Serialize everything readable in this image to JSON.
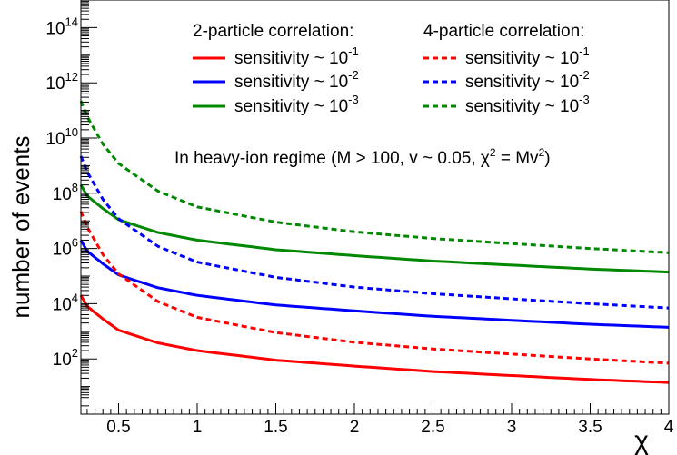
{
  "chart_data": {
    "type": "line",
    "title": "",
    "xlabel": "χ",
    "ylabel": "number of events",
    "x_scale": "linear",
    "y_scale": "log",
    "xlim": [
      0.26,
      4.0
    ],
    "ylim": [
      1,
      1000000000000000.0
    ],
    "x_ticks": [
      0.5,
      1,
      1.5,
      2,
      2.5,
      3,
      3.5,
      4
    ],
    "x_tick_labels": [
      "0.5",
      "1",
      "1.5",
      "2",
      "2.5",
      "3",
      "3.5",
      "4"
    ],
    "y_ticks": [
      100,
      10000,
      1000000,
      100000000,
      10000000000,
      1000000000000,
      100000000000000
    ],
    "y_tick_labels": [
      {
        "base": "10",
        "exp": "2"
      },
      {
        "base": "10",
        "exp": "4"
      },
      {
        "base": "10",
        "exp": "6"
      },
      {
        "base": "10",
        "exp": "8"
      },
      {
        "base": "10",
        "exp": "10"
      },
      {
        "base": "10",
        "exp": "12"
      },
      {
        "base": "10",
        "exp": "14"
      }
    ],
    "grid": false,
    "legend_headers": [
      "2-particle correlation:",
      "4-particle correlation:"
    ],
    "annotation": {
      "prefix": "In heavy-ion regime (M > 100, v ~ 0.05, ",
      "chi": "χ",
      "chi_exp": "2",
      "middle": " = Mv",
      "v_exp": "2",
      "suffix": ")"
    },
    "series": [
      {
        "name": "sensitivity ~ 10",
        "name_exp": "-1",
        "group": "2-particle correlation",
        "color": "#ff0000",
        "dash": "solid",
        "x": [
          0.26,
          0.3,
          0.4,
          0.5,
          0.75,
          1,
          1.5,
          2,
          2.5,
          3,
          3.5,
          4
        ],
        "y": [
          20000,
          8000,
          2800,
          1100,
          380,
          200,
          90,
          55,
          35,
          25,
          18,
          14
        ]
      },
      {
        "name": "sensitivity ~ 10",
        "name_exp": "-2",
        "group": "2-particle correlation",
        "color": "#0000ff",
        "dash": "solid",
        "x": [
          0.26,
          0.3,
          0.4,
          0.5,
          0.75,
          1,
          1.5,
          2,
          2.5,
          3,
          3.5,
          4
        ],
        "y": [
          2000000,
          800000,
          280000,
          110000,
          38000,
          20000,
          9000,
          5500,
          3500,
          2500,
          1800,
          1400
        ]
      },
      {
        "name": "sensitivity ~ 10",
        "name_exp": "-3",
        "group": "2-particle correlation",
        "color": "#008800",
        "dash": "solid",
        "x": [
          0.26,
          0.3,
          0.4,
          0.5,
          0.75,
          1,
          1.5,
          2,
          2.5,
          3,
          3.5,
          4
        ],
        "y": [
          200000000,
          80000000,
          28000000,
          11000000,
          3800000,
          2000000,
          900000,
          550000,
          350000,
          250000,
          180000,
          140000
        ]
      },
      {
        "name": "sensitivity ~ 10",
        "name_exp": "-1",
        "group": "4-particle correlation",
        "color": "#ff0000",
        "dash": "dotted",
        "x": [
          0.26,
          0.3,
          0.4,
          0.5,
          0.75,
          1,
          1.5,
          2,
          2.5,
          3,
          3.5,
          4
        ],
        "y": [
          22000000,
          6000000,
          600000,
          120000,
          12000,
          3200,
          900,
          400,
          230,
          150,
          100,
          70
        ]
      },
      {
        "name": "sensitivity ~ 10",
        "name_exp": "-2",
        "group": "4-particle correlation",
        "color": "#0000ff",
        "dash": "dotted",
        "x": [
          0.26,
          0.3,
          0.4,
          0.5,
          0.75,
          1,
          1.5,
          2,
          2.5,
          3,
          3.5,
          4
        ],
        "y": [
          2200000000,
          600000000,
          60000000,
          12000000,
          1200000,
          320000,
          90000,
          40000,
          23000,
          15000,
          10000,
          7000
        ]
      },
      {
        "name": "sensitivity ~ 10",
        "name_exp": "-3",
        "group": "4-particle correlation",
        "color": "#008800",
        "dash": "dotted",
        "x": [
          0.26,
          0.3,
          0.4,
          0.5,
          0.75,
          1,
          1.5,
          2,
          2.5,
          3,
          3.5,
          4
        ],
        "y": [
          220000000000,
          60000000000,
          6000000000,
          1200000000,
          120000000,
          32000000,
          9000000,
          4000000,
          2300000,
          1500000,
          1000000,
          700000
        ]
      }
    ]
  }
}
